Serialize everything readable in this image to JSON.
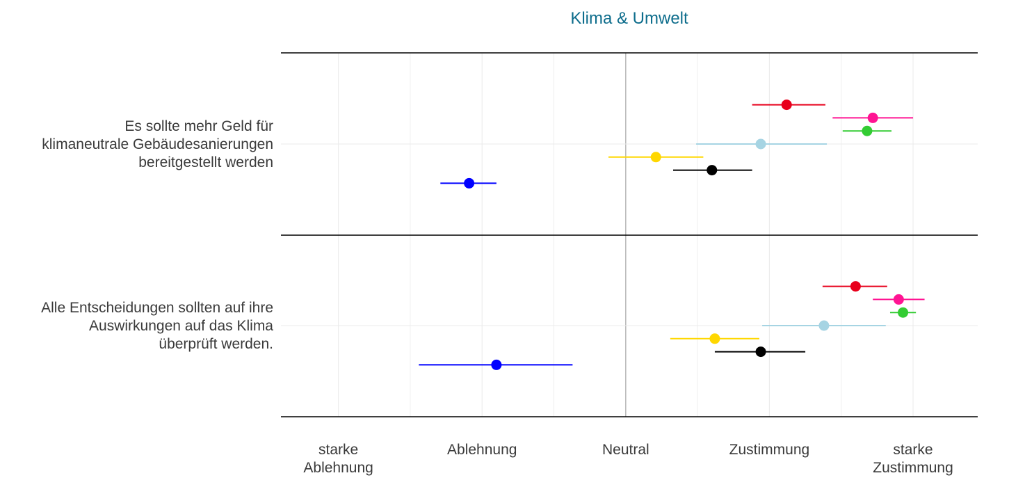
{
  "chart_data": {
    "type": "scatter",
    "title": "Klima & Umwelt",
    "xlim": [
      0.6,
      5.45
    ],
    "grid": true,
    "x_ticks": [
      {
        "value": 1,
        "lines": [
          "starke",
          "Ablehnung"
        ]
      },
      {
        "value": 2,
        "lines": [
          "Ablehnung"
        ]
      },
      {
        "value": 3,
        "lines": [
          "Neutral"
        ]
      },
      {
        "value": 4,
        "lines": [
          "Zustimmung"
        ]
      },
      {
        "value": 5,
        "lines": [
          "starke",
          "Zustimmung"
        ]
      }
    ],
    "categories": [
      {
        "lines": [
          "Es sollte mehr Geld für",
          "klimaneutrale Gebäudesanierungen",
          "bereitgestellt werden"
        ],
        "points": [
          {
            "color": "#e8001c",
            "estimate": 4.12,
            "low": 3.88,
            "high": 4.39
          },
          {
            "color": "#ff1493",
            "estimate": 4.72,
            "low": 4.44,
            "high": 5.0
          },
          {
            "color": "#33cc33",
            "estimate": 4.68,
            "low": 4.51,
            "high": 4.85
          },
          {
            "color": "#a6d4e3",
            "estimate": 3.94,
            "low": 3.49,
            "high": 4.4
          },
          {
            "color": "#ffd700",
            "estimate": 3.21,
            "low": 2.88,
            "high": 3.54
          },
          {
            "color": "#000000",
            "estimate": 3.6,
            "low": 3.33,
            "high": 3.88
          },
          {
            "color": "#0000ff",
            "estimate": 1.91,
            "low": 1.71,
            "high": 2.1
          }
        ]
      },
      {
        "lines": [
          "Alle Entscheidungen sollten auf ihre",
          "Auswirkungen auf das Klima",
          "überprüft werden."
        ],
        "points": [
          {
            "color": "#e8001c",
            "estimate": 4.6,
            "low": 4.37,
            "high": 4.82
          },
          {
            "color": "#ff1493",
            "estimate": 4.9,
            "low": 4.72,
            "high": 5.08
          },
          {
            "color": "#33cc33",
            "estimate": 4.93,
            "low": 4.84,
            "high": 5.02
          },
          {
            "color": "#a6d4e3",
            "estimate": 4.38,
            "low": 3.95,
            "high": 4.81
          },
          {
            "color": "#ffd700",
            "estimate": 3.62,
            "low": 3.31,
            "high": 3.93
          },
          {
            "color": "#000000",
            "estimate": 3.94,
            "low": 3.62,
            "high": 4.25
          },
          {
            "color": "#0000ff",
            "estimate": 2.1,
            "low": 1.56,
            "high": 2.63
          }
        ]
      }
    ]
  }
}
